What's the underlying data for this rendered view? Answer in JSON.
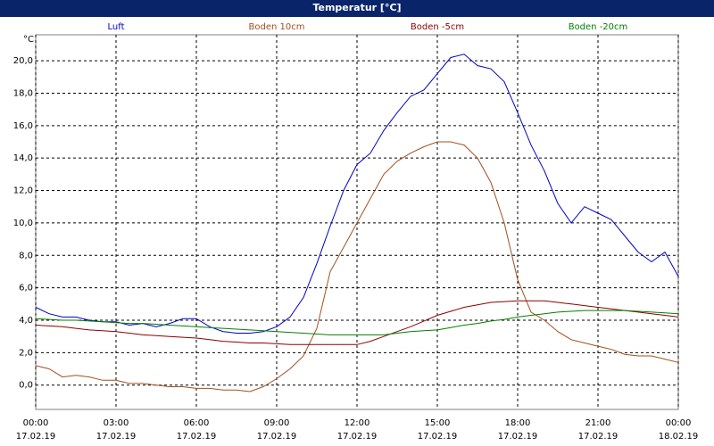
{
  "chart_data": {
    "type": "line",
    "title": "Temperatur [°C]",
    "ylabel": "°C",
    "x": [
      0,
      0.5,
      1,
      1.5,
      2,
      2.5,
      3,
      3.5,
      4,
      4.5,
      5,
      5.5,
      6,
      6.5,
      7,
      7.5,
      8,
      8.5,
      9,
      9.5,
      10,
      10.5,
      11,
      11.5,
      12,
      12.5,
      13,
      13.5,
      14,
      14.5,
      15,
      15.5,
      16,
      16.5,
      17,
      17.5,
      18,
      18.5,
      19,
      19.5,
      20,
      20.5,
      21,
      21.5,
      22,
      22.5,
      23,
      23.5,
      24
    ],
    "series": [
      {
        "name": "Luft",
        "color": "#0000c8",
        "values": [
          4.8,
          4.4,
          4.2,
          4.2,
          4.0,
          3.9,
          3.9,
          3.7,
          3.8,
          3.6,
          3.8,
          4.1,
          4.1,
          3.6,
          3.3,
          3.2,
          3.2,
          3.3,
          3.6,
          4.2,
          5.4,
          7.5,
          9.8,
          12.0,
          13.6,
          14.3,
          15.7,
          16.8,
          17.8,
          18.2,
          19.2,
          20.2,
          20.4,
          19.7,
          19.5,
          18.7,
          16.8,
          14.8,
          13.2,
          11.2,
          10.0,
          11.0,
          10.6,
          10.2,
          9.2,
          8.2,
          7.6,
          8.2,
          6.7
        ]
      },
      {
        "name": "Boden 10cm",
        "color": "#a0501e",
        "values": [
          1.2,
          1.0,
          0.5,
          0.6,
          0.5,
          0.3,
          0.3,
          0.1,
          0.1,
          0.0,
          -0.1,
          -0.1,
          -0.2,
          -0.2,
          -0.3,
          -0.3,
          -0.4,
          -0.1,
          0.4,
          1.0,
          1.8,
          3.5,
          7.0,
          8.5,
          10.0,
          11.5,
          13.0,
          13.8,
          14.3,
          14.7,
          15.0,
          15.0,
          14.8,
          14.0,
          12.5,
          10.0,
          6.5,
          4.5,
          4.0,
          3.3,
          2.8,
          2.6,
          2.4,
          2.2,
          1.9,
          1.8,
          1.8,
          1.6,
          1.4
        ]
      },
      {
        "name": "Boden -5cm",
        "color": "#8c0000",
        "values": [
          3.7,
          3.65,
          3.6,
          3.5,
          3.4,
          3.35,
          3.3,
          3.2,
          3.1,
          3.05,
          3.0,
          2.95,
          2.9,
          2.8,
          2.7,
          2.65,
          2.6,
          2.6,
          2.55,
          2.5,
          2.5,
          2.5,
          2.5,
          2.5,
          2.5,
          2.7,
          3.0,
          3.3,
          3.6,
          3.95,
          4.3,
          4.55,
          4.8,
          4.95,
          5.1,
          5.15,
          5.2,
          5.2,
          5.2,
          5.1,
          5.0,
          4.9,
          4.8,
          4.7,
          4.6,
          4.5,
          4.4,
          4.3,
          4.2
        ]
      },
      {
        "name": "Boden -20cm",
        "color": "#008000",
        "values": [
          4.1,
          4.05,
          4.0,
          4.0,
          3.95,
          3.9,
          3.85,
          3.8,
          3.8,
          3.75,
          3.7,
          3.65,
          3.6,
          3.55,
          3.5,
          3.45,
          3.4,
          3.35,
          3.3,
          3.25,
          3.2,
          3.15,
          3.1,
          3.1,
          3.1,
          3.1,
          3.1,
          3.2,
          3.3,
          3.35,
          3.4,
          3.55,
          3.7,
          3.8,
          3.95,
          4.05,
          4.2,
          4.3,
          4.4,
          4.5,
          4.55,
          4.6,
          4.6,
          4.6,
          4.6,
          4.55,
          4.5,
          4.45,
          4.4
        ]
      }
    ],
    "xlim": [
      0,
      24
    ],
    "xticks": [
      {
        "value": 0,
        "label": "00:00"
      },
      {
        "value": 3,
        "label": "03:00"
      },
      {
        "value": 6,
        "label": "06:00"
      },
      {
        "value": 9,
        "label": "09:00"
      },
      {
        "value": 12,
        "label": "12:00"
      },
      {
        "value": 15,
        "label": "15:00"
      },
      {
        "value": 18,
        "label": "18:00"
      },
      {
        "value": 21,
        "label": "21:00"
      },
      {
        "value": 24,
        "label": "00:00"
      }
    ],
    "xtick_dates": [
      "17.02.19",
      "17.02.19",
      "17.02.19",
      "17.02.19",
      "17.02.19",
      "17.02.19",
      "17.02.19",
      "17.02.19",
      "18.02.19"
    ],
    "ylim": [
      -1.5,
      21.6
    ],
    "yticks": [
      {
        "value": 0,
        "label": "0,0"
      },
      {
        "value": 2,
        "label": "2,0"
      },
      {
        "value": 4,
        "label": "4,0"
      },
      {
        "value": 6,
        "label": "6,0"
      },
      {
        "value": 8,
        "label": "8,0"
      },
      {
        "value": 10,
        "label": "10,0"
      },
      {
        "value": 12,
        "label": "12,0"
      },
      {
        "value": 14,
        "label": "14,0"
      },
      {
        "value": 16,
        "label": "16,0"
      },
      {
        "value": 18,
        "label": "18,0"
      },
      {
        "value": 20,
        "label": "20,0"
      }
    ],
    "grid": true
  }
}
